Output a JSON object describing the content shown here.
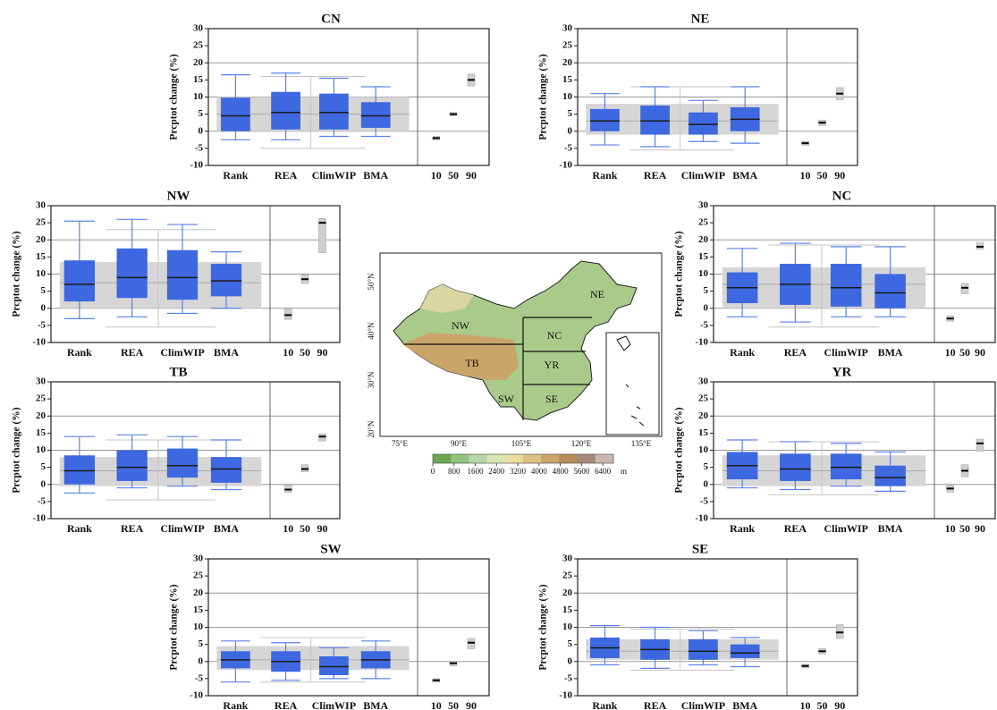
{
  "chart_data": [
    {
      "type": "box",
      "title": "CN",
      "y_label": "Prcptot change (%)",
      "categories": [
        "Rank",
        "REA",
        "ClimWIP",
        "BMA"
      ],
      "percentile_labels": [
        "10",
        "50",
        "90"
      ],
      "ylim": [
        -10,
        30
      ],
      "yticks": [
        -10,
        -5,
        0,
        5,
        10,
        15,
        20,
        25,
        30
      ],
      "hlines": [
        0,
        10,
        20,
        30
      ],
      "box_color": "#3d68e0",
      "ensemble_color": "#d6d6d6",
      "boxes": [
        {
          "low": -2.5,
          "q1": 0,
          "median": 4.5,
          "q3": 9.8,
          "high": 16.5
        },
        {
          "low": -2.5,
          "q1": 0.5,
          "median": 5.5,
          "q3": 11.5,
          "high": 17
        },
        {
          "low": -1.5,
          "q1": 0.5,
          "median": 5.5,
          "q3": 11,
          "high": 15.5
        },
        {
          "low": -1.5,
          "q1": 1,
          "median": 4.5,
          "q3": 8.5,
          "high": 13
        }
      ],
      "ensemble": {
        "low": -5,
        "q1": 0,
        "median": 5,
        "q3": 10,
        "high": 16
      },
      "percentiles": [
        {
          "low": -2.3,
          "median": -2,
          "high": -1.8
        },
        {
          "low": 4.7,
          "median": 5,
          "high": 5.2
        },
        {
          "low": 13.5,
          "median": 15,
          "high": 16.5
        }
      ]
    },
    {
      "type": "box",
      "title": "NE",
      "y_label": "Prcptot change (%)",
      "categories": [
        "Rank",
        "REA",
        "ClimWIP",
        "BMA"
      ],
      "percentile_labels": [
        "10",
        "50",
        "90"
      ],
      "ylim": [
        -10,
        30
      ],
      "yticks": [
        -10,
        -5,
        0,
        5,
        10,
        15,
        20,
        25,
        30
      ],
      "hlines": [
        0,
        10,
        20,
        30
      ],
      "box_color": "#3d68e0",
      "ensemble_color": "#d6d6d6",
      "boxes": [
        {
          "low": -4,
          "q1": 0,
          "median": 3,
          "q3": 6.5,
          "high": 11
        },
        {
          "low": -4.5,
          "q1": -1,
          "median": 3,
          "q3": 7.5,
          "high": 13
        },
        {
          "low": -3,
          "q1": -1,
          "median": 2,
          "q3": 5.5,
          "high": 9
        },
        {
          "low": -3.5,
          "q1": 0,
          "median": 3.5,
          "q3": 7,
          "high": 13
        }
      ],
      "ensemble": {
        "low": -5.5,
        "q1": -1,
        "median": 3,
        "q3": 8,
        "high": 13
      },
      "percentiles": [
        {
          "low": -3.8,
          "median": -3.5,
          "high": -3.2
        },
        {
          "low": 2,
          "median": 2.5,
          "high": 3
        },
        {
          "low": 9.5,
          "median": 11,
          "high": 12.5
        }
      ]
    },
    {
      "type": "box",
      "title": "NW",
      "y_label": "Prcptot change (%)",
      "categories": [
        "Rank",
        "REA",
        "ClimWIP",
        "BMA"
      ],
      "percentile_labels": [
        "10",
        "50",
        "90"
      ],
      "ylim": [
        -10,
        30
      ],
      "yticks": [
        -10,
        -5,
        0,
        5,
        10,
        15,
        20,
        25,
        30
      ],
      "hlines": [
        0,
        10,
        20,
        30
      ],
      "box_color": "#3d68e0",
      "ensemble_color": "#d6d6d6",
      "boxes": [
        {
          "low": -3,
          "q1": 2,
          "median": 7,
          "q3": 14,
          "high": 25.5
        },
        {
          "low": -2.5,
          "q1": 3,
          "median": 9,
          "q3": 17.5,
          "high": 26
        },
        {
          "low": -1.5,
          "q1": 2.5,
          "median": 9,
          "q3": 17,
          "high": 24.5
        },
        {
          "low": 0,
          "q1": 3.5,
          "median": 8,
          "q3": 13,
          "high": 16.5
        }
      ],
      "ensemble": {
        "low": -5.5,
        "q1": 0,
        "median": 7.5,
        "q3": 13.5,
        "high": 23
      },
      "percentiles": [
        {
          "low": -3,
          "median": -2,
          "high": -0.5
        },
        {
          "low": 7.5,
          "median": 8.5,
          "high": 9.5
        },
        {
          "low": 16.5,
          "median": 25,
          "high": 26
        }
      ]
    },
    {
      "type": "box",
      "title": "NC",
      "y_label": "Prcptot change (%)",
      "categories": [
        "Rank",
        "REA",
        "ClimWIP",
        "BMA"
      ],
      "percentile_labels": [
        "10",
        "50",
        "90"
      ],
      "ylim": [
        -10,
        30
      ],
      "yticks": [
        -10,
        -5,
        0,
        5,
        10,
        15,
        20,
        25,
        30
      ],
      "hlines": [
        0,
        10,
        20,
        30
      ],
      "box_color": "#3d68e0",
      "ensemble_color": "#d6d6d6",
      "boxes": [
        {
          "low": -2.5,
          "q1": 1.5,
          "median": 6,
          "q3": 10.5,
          "high": 17.5
        },
        {
          "low": -4,
          "q1": 1,
          "median": 7,
          "q3": 13,
          "high": 19
        },
        {
          "low": -2.5,
          "q1": 0.5,
          "median": 6,
          "q3": 13,
          "high": 18
        },
        {
          "low": -2.5,
          "q1": 0,
          "median": 4.5,
          "q3": 10,
          "high": 18
        }
      ],
      "ensemble": {
        "low": -5.5,
        "q1": 0,
        "median": 7,
        "q3": 12,
        "high": 18.5
      },
      "percentiles": [
        {
          "low": -3.5,
          "median": -3,
          "high": -2.5
        },
        {
          "low": 4.5,
          "median": 6,
          "high": 7
        },
        {
          "low": 17.5,
          "median": 18,
          "high": 19
        }
      ]
    },
    {
      "type": "box",
      "title": "TB",
      "y_label": "Prcptot change (%)",
      "categories": [
        "Rank",
        "REA",
        "ClimWIP",
        "BMA"
      ],
      "percentile_labels": [
        "10",
        "50",
        "90"
      ],
      "ylim": [
        -10,
        30
      ],
      "yticks": [
        -10,
        -5,
        0,
        5,
        10,
        15,
        20,
        25,
        30
      ],
      "hlines": [
        0,
        10,
        20,
        30
      ],
      "box_color": "#3d68e0",
      "ensemble_color": "#d6d6d6",
      "boxes": [
        {
          "low": -2.5,
          "q1": 0,
          "median": 4,
          "q3": 8.5,
          "high": 14
        },
        {
          "low": -1,
          "q1": 1,
          "median": 5,
          "q3": 10,
          "high": 14.5
        },
        {
          "low": -0.5,
          "q1": 2,
          "median": 5.5,
          "q3": 10.5,
          "high": 14
        },
        {
          "low": -1.5,
          "q1": 0.5,
          "median": 4.5,
          "q3": 8,
          "high": 13
        }
      ],
      "ensemble": {
        "low": -4.5,
        "q1": -0.5,
        "median": 4,
        "q3": 8,
        "high": 13
      },
      "percentiles": [
        {
          "low": -2,
          "median": -1.5,
          "high": -0.5
        },
        {
          "low": 4,
          "median": 4.5,
          "high": 5.5
        },
        {
          "low": 13,
          "median": 14,
          "high": 14.5
        }
      ]
    },
    {
      "type": "box",
      "title": "YR",
      "y_label": "Prcptot change (%)",
      "categories": [
        "Rank",
        "REA",
        "ClimWIP",
        "BMA"
      ],
      "percentile_labels": [
        "10",
        "50",
        "90"
      ],
      "ylim": [
        -10,
        30
      ],
      "yticks": [
        -10,
        -5,
        0,
        5,
        10,
        15,
        20,
        25,
        30
      ],
      "hlines": [
        0,
        10,
        20,
        30
      ],
      "box_color": "#3d68e0",
      "ensemble_color": "#d6d6d6",
      "boxes": [
        {
          "low": -1,
          "q1": 1.5,
          "median": 5.5,
          "q3": 9.5,
          "high": 13
        },
        {
          "low": -1.5,
          "q1": 1,
          "median": 4.5,
          "q3": 9,
          "high": 12.5
        },
        {
          "low": -0.5,
          "q1": 1.5,
          "median": 5,
          "q3": 9,
          "high": 12
        },
        {
          "low": -2,
          "q1": -0.5,
          "median": 2,
          "q3": 5.5,
          "high": 9.5
        }
      ],
      "ensemble": {
        "low": -3,
        "q1": -0.5,
        "median": 4,
        "q3": 8.5,
        "high": 12.5
      },
      "percentiles": [
        {
          "low": -2,
          "median": -1.2,
          "high": -0.5
        },
        {
          "low": 2.5,
          "median": 4,
          "high": 5.5
        },
        {
          "low": 10,
          "median": 12,
          "high": 13
        }
      ]
    },
    {
      "type": "box",
      "title": "SW",
      "y_label": "Prcptot change (%)",
      "categories": [
        "Rank",
        "REA",
        "ClimWIP",
        "BMA"
      ],
      "percentile_labels": [
        "10",
        "50",
        "90"
      ],
      "ylim": [
        -10,
        30
      ],
      "yticks": [
        -10,
        -5,
        0,
        5,
        10,
        15,
        20,
        25,
        30
      ],
      "hlines": [
        0,
        10,
        20,
        30
      ],
      "box_color": "#3d68e0",
      "ensemble_color": "#d6d6d6",
      "boxes": [
        {
          "low": -6,
          "q1": -2,
          "median": 0.5,
          "q3": 3,
          "high": 6
        },
        {
          "low": -5.5,
          "q1": -3,
          "median": 0,
          "q3": 3,
          "high": 5.5
        },
        {
          "low": -5,
          "q1": -4,
          "median": -1.5,
          "q3": 1.5,
          "high": 4
        },
        {
          "low": -5,
          "q1": -2,
          "median": 0.5,
          "q3": 3,
          "high": 6
        }
      ],
      "ensemble": {
        "low": -6,
        "q1": -2.5,
        "median": 0.5,
        "q3": 4.5,
        "high": 7
      },
      "percentiles": [
        {
          "low": -5.8,
          "median": -5.5,
          "high": -5.3
        },
        {
          "low": -1,
          "median": -0.5,
          "high": -0.2
        },
        {
          "low": 4,
          "median": 5.5,
          "high": 6.5
        }
      ]
    },
    {
      "type": "box",
      "title": "SE",
      "y_label": "Prcptot change (%)",
      "categories": [
        "Rank",
        "REA",
        "ClimWIP",
        "BMA"
      ],
      "percentile_labels": [
        "10",
        "50",
        "90"
      ],
      "ylim": [
        -10,
        30
      ],
      "yticks": [
        -10,
        -5,
        0,
        5,
        10,
        15,
        20,
        25,
        30
      ],
      "hlines": [
        0,
        10,
        20,
        30
      ],
      "box_color": "#3d68e0",
      "ensemble_color": "#d6d6d6",
      "boxes": [
        {
          "low": -1,
          "q1": 1,
          "median": 4,
          "q3": 7,
          "high": 10.5
        },
        {
          "low": -2,
          "q1": 0.5,
          "median": 3.5,
          "q3": 6.5,
          "high": 10
        },
        {
          "low": -1,
          "q1": 0.5,
          "median": 3,
          "q3": 6.5,
          "high": 9
        },
        {
          "low": -1.5,
          "q1": 1,
          "median": 2.5,
          "q3": 5,
          "high": 7
        }
      ],
      "ensemble": {
        "low": -2.5,
        "q1": 0.5,
        "median": 3,
        "q3": 6.5,
        "high": 9.5
      },
      "percentiles": [
        {
          "low": -1.6,
          "median": -1.3,
          "high": -1.1
        },
        {
          "low": 2.5,
          "median": 3,
          "high": 3.5
        },
        {
          "low": 7,
          "median": 8.5,
          "high": 10.5
        }
      ]
    }
  ],
  "map": {
    "region_labels": [
      "NE",
      "NW",
      "NC",
      "TB",
      "YR",
      "SW",
      "SE"
    ],
    "lon_labels": [
      "75°E",
      "90°E",
      "105°E",
      "120°E",
      "135°E"
    ],
    "lat_labels": [
      "50°N",
      "40°N",
      "30°N",
      "20°N"
    ],
    "colorbar": {
      "lim": [
        0,
        6800
      ],
      "ticks": [
        0,
        800,
        1600,
        2400,
        3200,
        4000,
        4800,
        5600,
        6400
      ],
      "unit": "m"
    }
  }
}
